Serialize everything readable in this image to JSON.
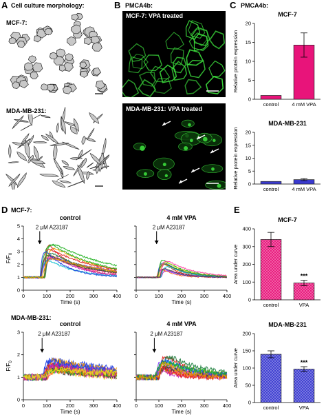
{
  "panels": {
    "A": {
      "letter": "A",
      "heading": "Cell culture morphology:",
      "top_label": "MCF-7:",
      "bottom_label": "MDA-MB-231:"
    },
    "B": {
      "letter": "B",
      "heading": "PMCA4b:",
      "top_label": "MCF-7: VPA treated",
      "bottom_label": "MDA-MB-231: VPA treated"
    },
    "C": {
      "letter": "C",
      "heading": "PMCA4b:"
    },
    "D": {
      "letter": "D",
      "row1_label": "MCF-7:",
      "row2_label": "MDA-MB-231:",
      "ylabel_main": "F/F",
      "ylabel_sub": "0",
      "stim_label": "2 μM A23187"
    },
    "E": {
      "letter": "E"
    }
  },
  "colors": {
    "pink": "#e8147a",
    "blue": "#3a3ad0",
    "gfp": "#3cdc3c",
    "cell_fill": "#c8c8c8"
  },
  "chart_data": [
    {
      "id": "C-mcf7",
      "type": "bar",
      "title": "MCF-7",
      "ylabel": "Relative protein expression",
      "categories": [
        "control",
        "4 mM VPA"
      ],
      "values": [
        1,
        14.3
      ],
      "errors": [
        0,
        3.2
      ],
      "ylim": [
        0,
        20
      ],
      "yticks": [
        0,
        5,
        10,
        15,
        20
      ],
      "color": "#e8147a"
    },
    {
      "id": "C-mda",
      "type": "bar",
      "title": "MDA-MB-231",
      "ylabel": "Relative protein expression",
      "categories": [
        "control",
        "4 mM VPA"
      ],
      "values": [
        1,
        1.7
      ],
      "errors": [
        0,
        0.4
      ],
      "ylim": [
        0,
        20
      ],
      "yticks": [
        0,
        5,
        10,
        15,
        20
      ],
      "color": "#3a3ad0"
    },
    {
      "id": "D-mcf7-control",
      "type": "line",
      "title": "control",
      "xlabel": "Time (s)",
      "xlim": [
        0,
        400
      ],
      "ylim": [
        0,
        5
      ],
      "xticks": [
        0,
        100,
        200,
        300,
        400
      ],
      "yticks": [
        0,
        1,
        2,
        3,
        4,
        5
      ],
      "stim_x": 70
    },
    {
      "id": "D-mcf7-vpa",
      "type": "line",
      "title": "4 mM VPA",
      "xlabel": "Time (s)",
      "xlim": [
        0,
        400
      ],
      "ylim": [
        0,
        5
      ],
      "xticks": [
        0,
        100,
        200,
        300,
        400
      ],
      "yticks": [
        0,
        1,
        2,
        3,
        4,
        5
      ],
      "stim_x": 90
    },
    {
      "id": "D-mda-control",
      "type": "line",
      "title": "control",
      "xlabel": "Time (s)",
      "xlim": [
        0,
        400
      ],
      "ylim": [
        0,
        3
      ],
      "xticks": [
        0,
        100,
        200,
        300,
        400
      ],
      "yticks": [
        0,
        1,
        2,
        3
      ],
      "stim_x": 80
    },
    {
      "id": "D-mda-vpa",
      "type": "line",
      "title": "4 mM VPA",
      "xlabel": "Time (s)",
      "xlim": [
        0,
        400
      ],
      "ylim": [
        0,
        3
      ],
      "xticks": [
        0,
        100,
        200,
        300,
        400
      ],
      "yticks": [
        0,
        1,
        2,
        3
      ],
      "stim_x": 80
    },
    {
      "id": "E-mcf7",
      "type": "bar",
      "title": "MCF-7",
      "ylabel": "Area under curve",
      "categories": [
        "control",
        "VPA"
      ],
      "values": [
        340,
        95
      ],
      "errors": [
        40,
        15
      ],
      "ylim": [
        0,
        400
      ],
      "yticks": [
        0,
        100,
        200,
        300,
        400
      ],
      "significance": "***",
      "color": "#e8147a"
    },
    {
      "id": "E-mda",
      "type": "bar",
      "title": "MDA-MB-231",
      "ylabel": "Area under curve",
      "categories": [
        "control",
        "VPA"
      ],
      "values": [
        140,
        97
      ],
      "errors": [
        10,
        7
      ],
      "ylim": [
        0,
        200
      ],
      "yticks": [
        0,
        50,
        100,
        150,
        200
      ],
      "significance": "***",
      "color": "#3a3ad0"
    }
  ]
}
